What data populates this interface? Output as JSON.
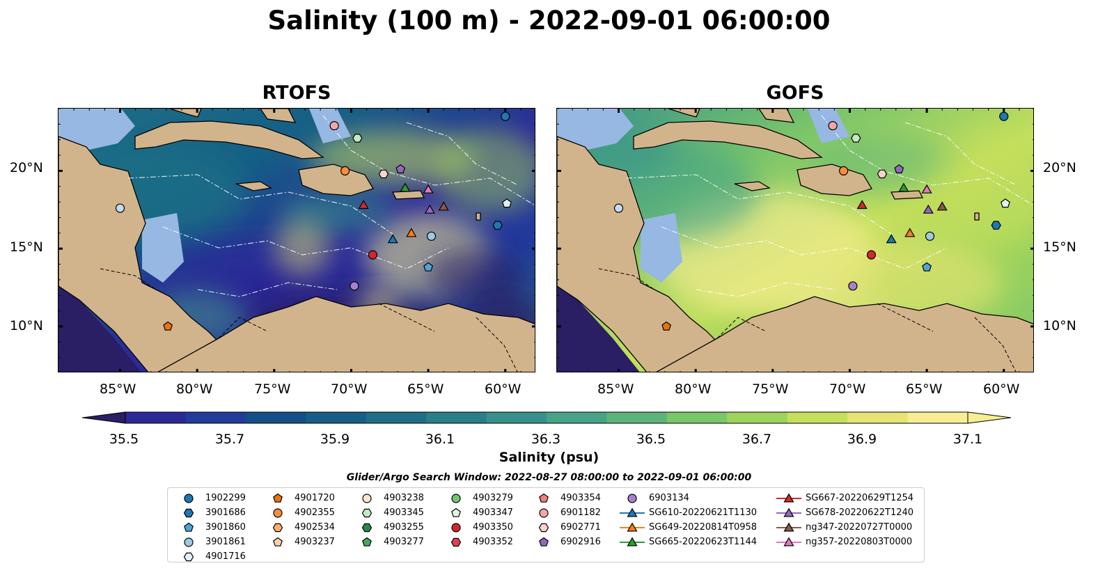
{
  "title": "Salinity (100 m) - 2022-09-01 06:00:00",
  "panels": [
    {
      "name": "RTOFS",
      "theme": "rtofs"
    },
    {
      "name": "GOFS",
      "theme": "gofs"
    }
  ],
  "lon_ticks": [
    "85°W",
    "80°W",
    "75°W",
    "70°W",
    "65°W",
    "60°W"
  ],
  "lat_ticks": [
    "20°N",
    "15°N",
    "10°N"
  ],
  "colorbar": {
    "ticks": [
      "35.5",
      "35.7",
      "35.9",
      "36.1",
      "36.3",
      "36.5",
      "36.7",
      "36.9",
      "37.1"
    ],
    "label": "Salinity (psu)",
    "colormap": "haline",
    "colors": [
      "#2a1e64",
      "#2b2898",
      "#213c9c",
      "#144e8a",
      "#155f86",
      "#1e6f85",
      "#2a7e86",
      "#36918a",
      "#45a387",
      "#5bb57a",
      "#7bc56a",
      "#9ed35c",
      "#c5df5c",
      "#e6e473",
      "#f7ee93"
    ]
  },
  "search_window": "Glider/Argo Search Window: 2022-08-27 08:00:00 to 2022-09-01 06:00:00",
  "legend": {
    "items": [
      {
        "label": "1902299",
        "marker": "circle",
        "color": "#1f77b4"
      },
      {
        "label": "3901686",
        "marker": "hexagon",
        "color": "#1f77b4"
      },
      {
        "label": "3901860",
        "marker": "pentagon",
        "color": "#4ea5d9"
      },
      {
        "label": "3901861",
        "marker": "circle",
        "color": "#9ecae1"
      },
      {
        "label": "4901716",
        "marker": "hexagon",
        "color": "#e0f0fa"
      },
      {
        "label": "4901720",
        "marker": "pentagon",
        "color": "#e6750f"
      },
      {
        "label": "4902355",
        "marker": "circle",
        "color": "#fd8d3c"
      },
      {
        "label": "4902534",
        "marker": "hexagon",
        "color": "#fdae6b"
      },
      {
        "label": "4903237",
        "marker": "pentagon",
        "color": "#fdd0a2"
      },
      {
        "label": "4903238",
        "marker": "circle",
        "color": "#fee6ce"
      },
      {
        "label": "4903345",
        "marker": "hexagon",
        "color": "#c7e9c0"
      },
      {
        "label": "4903255",
        "marker": "hexagon",
        "color": "#238b45"
      },
      {
        "label": "4903277",
        "marker": "pentagon",
        "color": "#41ab5d"
      },
      {
        "label": "4903279",
        "marker": "circle",
        "color": "#74c476"
      },
      {
        "label": "4903347",
        "marker": "pentagon",
        "color": "#e5f5e0"
      },
      {
        "label": "4903350",
        "marker": "circle",
        "color": "#d62728"
      },
      {
        "label": "4903352",
        "marker": "hexagon",
        "color": "#e3404f"
      },
      {
        "label": "4903354",
        "marker": "pentagon",
        "color": "#f08080"
      },
      {
        "label": "6901182",
        "marker": "circle",
        "color": "#f4a5a5"
      },
      {
        "label": "6902771",
        "marker": "hexagon",
        "color": "#fbd0d0"
      },
      {
        "label": "6902916",
        "marker": "pentagon",
        "color": "#9467bd"
      },
      {
        "label": "6903134",
        "marker": "circle",
        "color": "#a980cc"
      },
      {
        "label": "SG610-20220621T1130",
        "marker": "triangle-line",
        "color": "#1f77b4"
      },
      {
        "label": "SG649-20220814T0958",
        "marker": "triangle-line",
        "color": "#ff7f0e"
      },
      {
        "label": "SG665-20220623T1144",
        "marker": "triangle-line",
        "color": "#2ca02c"
      },
      {
        "label": "SG667-20220629T1254",
        "marker": "triangle-line",
        "color": "#d62728"
      },
      {
        "label": "SG678-20220622T1240",
        "marker": "triangle-line",
        "color": "#9467bd"
      },
      {
        "label": "ng347-20220727T0000",
        "marker": "triangle-line",
        "color": "#8c564b"
      },
      {
        "label": "ng357-20220803T0000",
        "marker": "triangle-line",
        "color": "#e377c2"
      }
    ]
  },
  "map_extent": {
    "lon": [
      -89,
      -58
    ],
    "lat": [
      7,
      24
    ]
  },
  "observations": [
    {
      "lon": -60.0,
      "lat": 23.5,
      "marker": "circle",
      "color": "#1f77b4"
    },
    {
      "lon": -60.5,
      "lat": 16.5,
      "marker": "hexagon",
      "color": "#1f77b4"
    },
    {
      "lon": -65.0,
      "lat": 13.8,
      "marker": "pentagon",
      "color": "#4ea5d9"
    },
    {
      "lon": -64.8,
      "lat": 15.8,
      "marker": "circle",
      "color": "#9ecae1"
    },
    {
      "lon": -59.9,
      "lat": 17.9,
      "marker": "pentagon",
      "color": "#e0f0fa"
    },
    {
      "lon": -85.0,
      "lat": 17.6,
      "marker": "circle",
      "color": "#c6dbef"
    },
    {
      "lon": -81.9,
      "lat": 10.0,
      "marker": "pentagon",
      "color": "#e6750f"
    },
    {
      "lon": -70.4,
      "lat": 20.0,
      "marker": "circle",
      "color": "#fd8d3c"
    },
    {
      "lon": -71.1,
      "lat": 22.9,
      "marker": "circle",
      "color": "#f4a5a5"
    },
    {
      "lon": -69.6,
      "lat": 22.1,
      "marker": "hexagon",
      "color": "#c7e9c0"
    },
    {
      "lon": -67.9,
      "lat": 19.8,
      "marker": "hexagon",
      "color": "#fbd0d0"
    },
    {
      "lon": -66.8,
      "lat": 20.1,
      "marker": "pentagon",
      "color": "#9467bd"
    },
    {
      "lon": -68.6,
      "lat": 14.6,
      "marker": "circle",
      "color": "#d62728"
    },
    {
      "lon": -69.8,
      "lat": 12.6,
      "marker": "circle",
      "color": "#a980cc"
    },
    {
      "lon": -69.2,
      "lat": 17.8,
      "marker": "triangle",
      "color": "#d62728"
    },
    {
      "lon": -67.3,
      "lat": 15.6,
      "marker": "triangle",
      "color": "#1f77b4"
    },
    {
      "lon": -66.1,
      "lat": 16.0,
      "marker": "triangle",
      "color": "#ff7f0e"
    },
    {
      "lon": -66.5,
      "lat": 18.9,
      "marker": "triangle",
      "color": "#2ca02c"
    },
    {
      "lon": -65.0,
      "lat": 18.8,
      "marker": "triangle",
      "color": "#e377c2"
    },
    {
      "lon": -64.9,
      "lat": 17.5,
      "marker": "triangle",
      "color": "#9467bd"
    },
    {
      "lon": -64.0,
      "lat": 17.7,
      "marker": "triangle",
      "color": "#8c564b"
    }
  ]
}
